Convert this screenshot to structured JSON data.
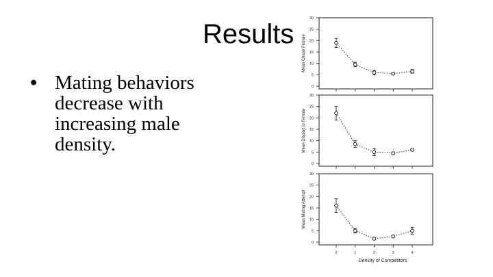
{
  "slide": {
    "title": "Results",
    "bullets": [
      "Mating behaviors decrease with increasing male density."
    ]
  },
  "chart_data": [
    {
      "type": "line",
      "ylabel": "Mean Chase Female",
      "xlabel": "",
      "x": [
        0,
        1,
        2,
        3,
        4
      ],
      "values": [
        19,
        9.5,
        6,
        5.5,
        6.5
      ],
      "errors": [
        2,
        1,
        1,
        0.5,
        0.8
      ],
      "ylim": [
        0,
        30
      ],
      "yticks": [
        "0",
        "5",
        "10",
        "15",
        "20",
        "25",
        "30"
      ],
      "xticks": [
        "",
        "",
        "",
        "",
        ""
      ]
    },
    {
      "type": "line",
      "ylabel": "Mean Display to Female",
      "xlabel": "",
      "x": [
        0,
        1,
        2,
        3,
        4
      ],
      "values": [
        22,
        8.5,
        5,
        4.5,
        6
      ],
      "errors": [
        3,
        1.5,
        1.5,
        0.5,
        0.5
      ],
      "ylim": [
        0,
        30
      ],
      "yticks": [
        "0",
        "5",
        "10",
        "15",
        "20",
        "25",
        "30"
      ],
      "xticks": [
        "",
        "",
        "",
        "",
        ""
      ]
    },
    {
      "type": "line",
      "ylabel": "Mean Mating Attempt",
      "xlabel": "Density of Competitors",
      "x": [
        0,
        1,
        2,
        3,
        4
      ],
      "values": [
        16,
        5,
        1.5,
        2.5,
        5
      ],
      "errors": [
        3,
        1,
        0.5,
        0.5,
        1.5
      ],
      "ylim": [
        0,
        30
      ],
      "yticks": [
        "0",
        "5",
        "10",
        "15",
        "20",
        "25",
        "30"
      ],
      "xticks": [
        "0",
        "1",
        "2",
        "3",
        "4"
      ]
    }
  ]
}
